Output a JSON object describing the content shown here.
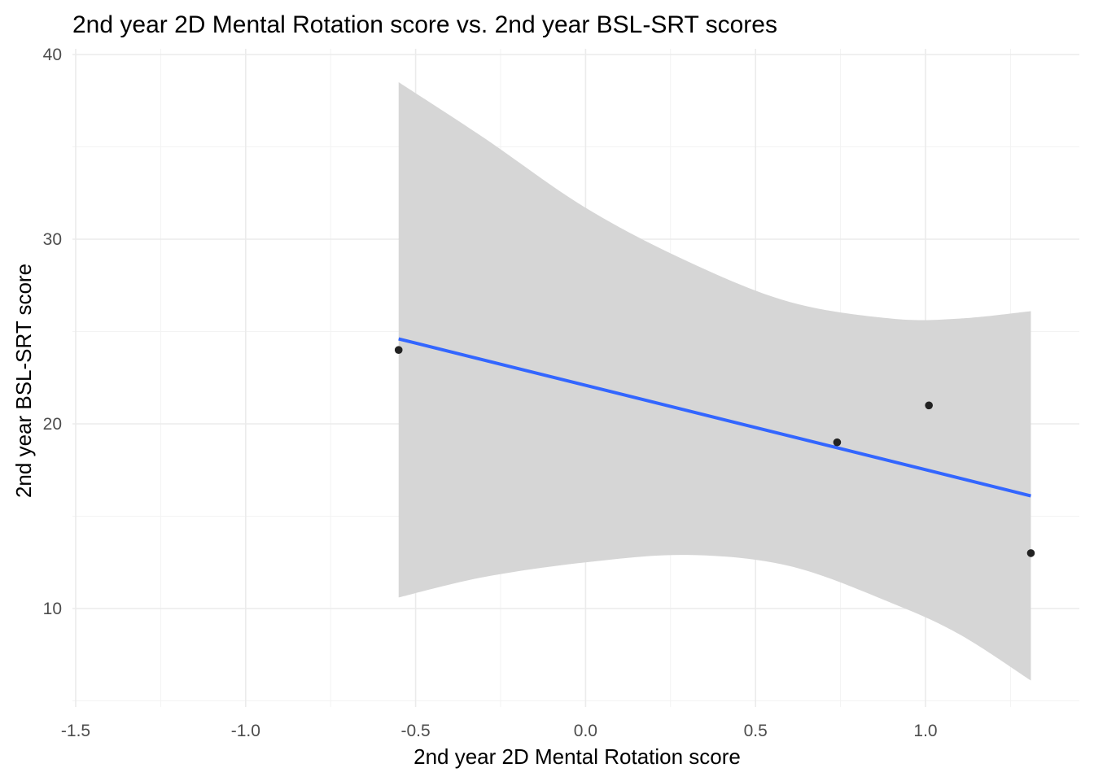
{
  "chart_data": {
    "type": "scatter",
    "title": "2nd year 2D Mental Rotation score vs. 2nd year BSL-SRT scores",
    "xlabel": "2nd year 2D Mental Rotation score",
    "ylabel": "2nd year BSL-SRT score",
    "xlim": [
      -1.5,
      1.5
    ],
    "ylim": [
      5,
      40
    ],
    "x_ticks": [
      -1.5,
      -1.0,
      -0.5,
      0.0,
      0.5,
      1.0
    ],
    "x_tick_labels": [
      "-1.5",
      "-1.0",
      "-0.5",
      "0.0",
      "0.5",
      "1.0"
    ],
    "y_ticks": [
      10,
      20,
      30,
      40
    ],
    "y_tick_labels": [
      "10",
      "20",
      "30",
      "40"
    ],
    "grid": true,
    "points": [
      {
        "x": -0.55,
        "y": 24
      },
      {
        "x": 0.74,
        "y": 19
      },
      {
        "x": 1.01,
        "y": 21
      },
      {
        "x": 1.31,
        "y": 13
      }
    ],
    "fit_line": {
      "method": "linear",
      "x": [
        -0.55,
        1.31
      ],
      "y": [
        24.6,
        16.1
      ]
    },
    "confidence_band": {
      "x": [
        -0.55,
        -0.3,
        0.0,
        0.3,
        0.6,
        0.9,
        1.1,
        1.31
      ],
      "upper": [
        38.5,
        35.5,
        31.7,
        28.8,
        26.6,
        25.7,
        25.7,
        26.1
      ],
      "lower": [
        10.6,
        11.7,
        12.5,
        12.9,
        12.3,
        10.3,
        8.6,
        6.1
      ]
    },
    "colors": {
      "line": "#3366ff",
      "band": "#d6d6d6",
      "points": "#222222"
    }
  }
}
